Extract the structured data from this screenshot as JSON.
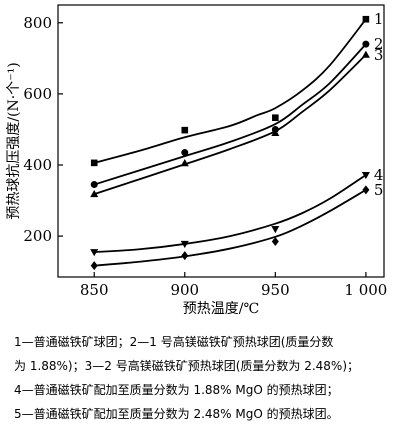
{
  "chart_data": {
    "type": "line",
    "xlabel": "预热温度/℃",
    "ylabel": "预热球抗压强度/(N·个⁻¹)",
    "xlim": [
      830,
      1010
    ],
    "ylim": [
      85,
      850
    ],
    "x_ticks": [
      850,
      900,
      950,
      1000
    ],
    "x_tick_labels": [
      "850",
      "900",
      "950",
      "1 000"
    ],
    "y_ticks": [
      200,
      400,
      600,
      800
    ],
    "grid": false,
    "series": [
      {
        "name": "1",
        "marker": "square",
        "x": [
          850,
          900,
          950,
          1000
        ],
        "y": [
          406,
          498,
          533,
          810
        ],
        "curve": [
          [
            850,
            406
          ],
          [
            875,
            440
          ],
          [
            900,
            478
          ],
          [
            925,
            510
          ],
          [
            940,
            540
          ],
          [
            950,
            560
          ],
          [
            965,
            610
          ],
          [
            980,
            680
          ],
          [
            1000,
            810
          ]
        ]
      },
      {
        "name": "2",
        "marker": "circle",
        "x": [
          850,
          900,
          950,
          1000
        ],
        "y": [
          345,
          435,
          500,
          740
        ],
        "curve": [
          [
            850,
            345
          ],
          [
            875,
            385
          ],
          [
            900,
            425
          ],
          [
            925,
            465
          ],
          [
            950,
            515
          ],
          [
            965,
            570
          ],
          [
            980,
            630
          ],
          [
            1000,
            740
          ]
        ]
      },
      {
        "name": "3",
        "marker": "triangle-up",
        "x": [
          850,
          900,
          950,
          1000
        ],
        "y": [
          318,
          405,
          490,
          710
        ],
        "curve": [
          [
            850,
            318
          ],
          [
            875,
            360
          ],
          [
            900,
            402
          ],
          [
            925,
            445
          ],
          [
            950,
            495
          ],
          [
            965,
            550
          ],
          [
            980,
            610
          ],
          [
            1000,
            710
          ]
        ]
      },
      {
        "name": "4",
        "marker": "triangle-down",
        "x": [
          850,
          900,
          950,
          1000
        ],
        "y": [
          155,
          178,
          220,
          372
        ],
        "curve": [
          [
            850,
            155
          ],
          [
            875,
            163
          ],
          [
            900,
            178
          ],
          [
            925,
            200
          ],
          [
            950,
            235
          ],
          [
            965,
            265
          ],
          [
            980,
            305
          ],
          [
            1000,
            372
          ]
        ]
      },
      {
        "name": "5",
        "marker": "diamond",
        "x": [
          850,
          900,
          950,
          1000
        ],
        "y": [
          117,
          145,
          185,
          330
        ],
        "curve": [
          [
            850,
            117
          ],
          [
            875,
            128
          ],
          [
            900,
            143
          ],
          [
            925,
            165
          ],
          [
            950,
            198
          ],
          [
            965,
            230
          ],
          [
            980,
            270
          ],
          [
            1000,
            330
          ]
        ]
      }
    ]
  },
  "caption": {
    "line1": "1—普通磁铁矿球团；2—1 号高镁磁铁矿预热球团(质量分数",
    "line2": "为 1.88%)；3—2 号高镁磁铁矿预热球团(质量分数为 2.48%)；",
    "line3": "4—普通磁铁矿配加至质量分数为 1.88% MgO 的预热球团；",
    "line4": "5—普通磁铁矿配加至质量分数为 2.48% MgO 的预热球团。"
  }
}
